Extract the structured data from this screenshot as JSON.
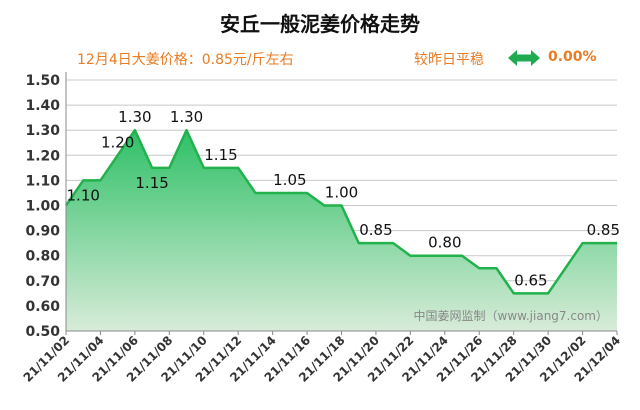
{
  "chart_data": {
    "type": "area",
    "title": "安丘一般泥姜价格走势",
    "subtitle_left": "12月4日大姜价格：0.85元/斤左右",
    "subtitle_right_label": "较昨日平稳",
    "subtitle_right_value": "0.00%",
    "watermark": "中国姜网监制（www.jiang7.com）",
    "x": [
      "21/11/02",
      "21/11/03",
      "21/11/04",
      "21/11/05",
      "21/11/06",
      "21/11/07",
      "21/11/08",
      "21/11/09",
      "21/11/10",
      "21/11/11",
      "21/11/12",
      "21/11/13",
      "21/11/14",
      "21/11/15",
      "21/11/16",
      "21/11/17",
      "21/11/18",
      "21/11/19",
      "21/11/20",
      "21/11/21",
      "21/11/22",
      "21/11/23",
      "21/11/24",
      "21/11/25",
      "21/11/26",
      "21/11/27",
      "21/11/28",
      "21/11/29",
      "21/11/30",
      "21/12/01",
      "21/12/02",
      "21/12/03",
      "21/12/04"
    ],
    "values": [
      1.0,
      1.1,
      1.1,
      1.2,
      1.3,
      1.15,
      1.15,
      1.3,
      1.15,
      1.15,
      1.15,
      1.05,
      1.05,
      1.05,
      1.05,
      1.0,
      1.0,
      0.85,
      0.85,
      0.85,
      0.8,
      0.8,
      0.8,
      0.8,
      0.75,
      0.75,
      0.65,
      0.65,
      0.65,
      0.75,
      0.85,
      0.85,
      0.85
    ],
    "x_tick_labels": [
      "21/11/02",
      "21/11/04",
      "21/11/06",
      "21/11/08",
      "21/11/10",
      "21/11/12",
      "21/11/14",
      "21/11/16",
      "21/11/18",
      "21/11/20",
      "21/11/22",
      "21/11/24",
      "21/11/26",
      "21/11/28",
      "21/11/30",
      "21/12/02",
      "21/12/04"
    ],
    "y_tick_labels": [
      "0.50",
      "0.60",
      "0.70",
      "0.80",
      "0.90",
      "1.00",
      "1.10",
      "1.20",
      "1.30",
      "1.40",
      "1.50"
    ],
    "ylim": [
      0.5,
      1.5
    ],
    "grid": true,
    "data_labels": [
      {
        "x": "21/11/03",
        "text": "1.10",
        "pos": "below"
      },
      {
        "x": "21/11/05",
        "text": "1.20",
        "pos": "above"
      },
      {
        "x": "21/11/06",
        "text": "1.30",
        "pos": "above"
      },
      {
        "x": "21/11/07",
        "text": "1.15",
        "pos": "below"
      },
      {
        "x": "21/11/09",
        "text": "1.30",
        "pos": "above"
      },
      {
        "x": "21/11/11",
        "text": "1.15",
        "pos": "above"
      },
      {
        "x": "21/11/15",
        "text": "1.05",
        "pos": "above"
      },
      {
        "x": "21/11/18",
        "text": "1.00",
        "pos": "above"
      },
      {
        "x": "21/11/20",
        "text": "0.85",
        "pos": "above"
      },
      {
        "x": "21/11/24",
        "text": "0.80",
        "pos": "above"
      },
      {
        "x": "21/11/29",
        "text": "0.65",
        "pos": "above"
      },
      {
        "x": "21/12/04",
        "text": "0.85",
        "pos": "above"
      }
    ],
    "colors": {
      "line": "#22b14c",
      "fill_top": "#2ec066",
      "fill_bottom": "#d8ecd9",
      "title": "#111111",
      "subtitle": "#e87b23",
      "arrow": "#1fab4f",
      "grid": "#c8c8c8"
    }
  }
}
